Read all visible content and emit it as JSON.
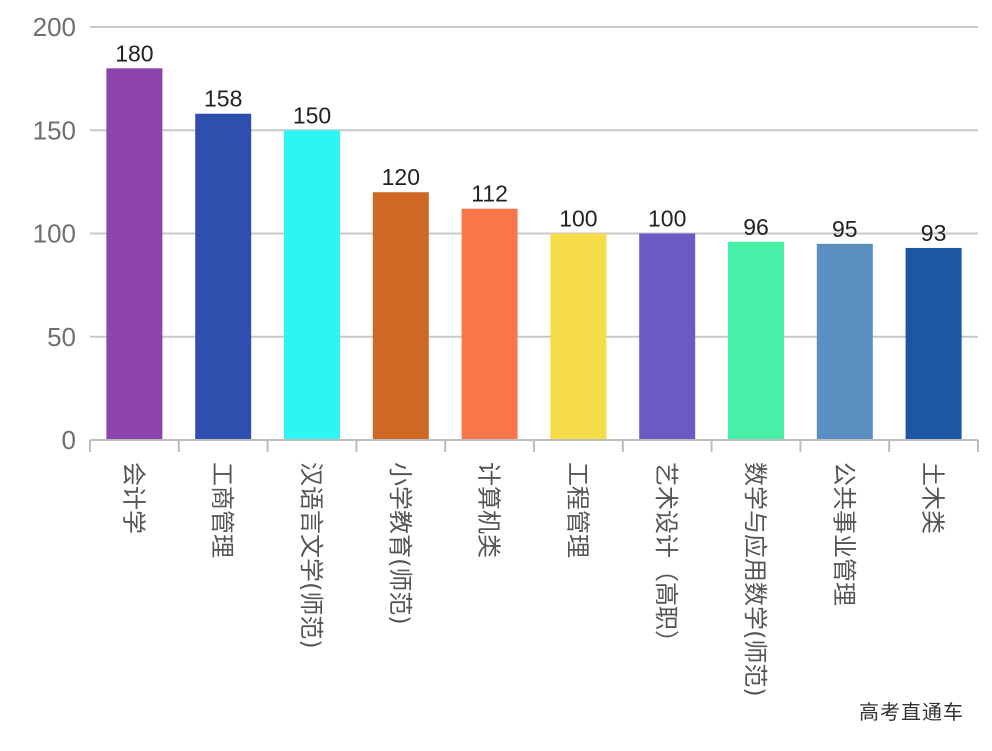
{
  "chart_data": {
    "type": "bar",
    "title": "",
    "xlabel": "",
    "ylabel": "",
    "categories": [
      "会计学",
      "工商管理",
      "汉语言文学(师范)",
      "小学教育(师范)",
      "计算机类",
      "工程管理",
      "艺术设计（高职）",
      "数学与应用数学(师范)",
      "公共事业管理",
      "土木类"
    ],
    "values": [
      180,
      158,
      150,
      120,
      112,
      100,
      100,
      96,
      95,
      93
    ],
    "colors": [
      "#8e44ad",
      "#2f4fae",
      "#2ef4f4",
      "#cf6725",
      "#f9764a",
      "#f6dc46",
      "#6a5ac4",
      "#46f0a6",
      "#5b8fc2",
      "#1b57a3"
    ],
    "yticks": [
      0,
      50,
      100,
      150,
      200
    ],
    "ylim": [
      0,
      200
    ],
    "grid": true,
    "legend": "none"
  },
  "watermark": "高考直通车"
}
